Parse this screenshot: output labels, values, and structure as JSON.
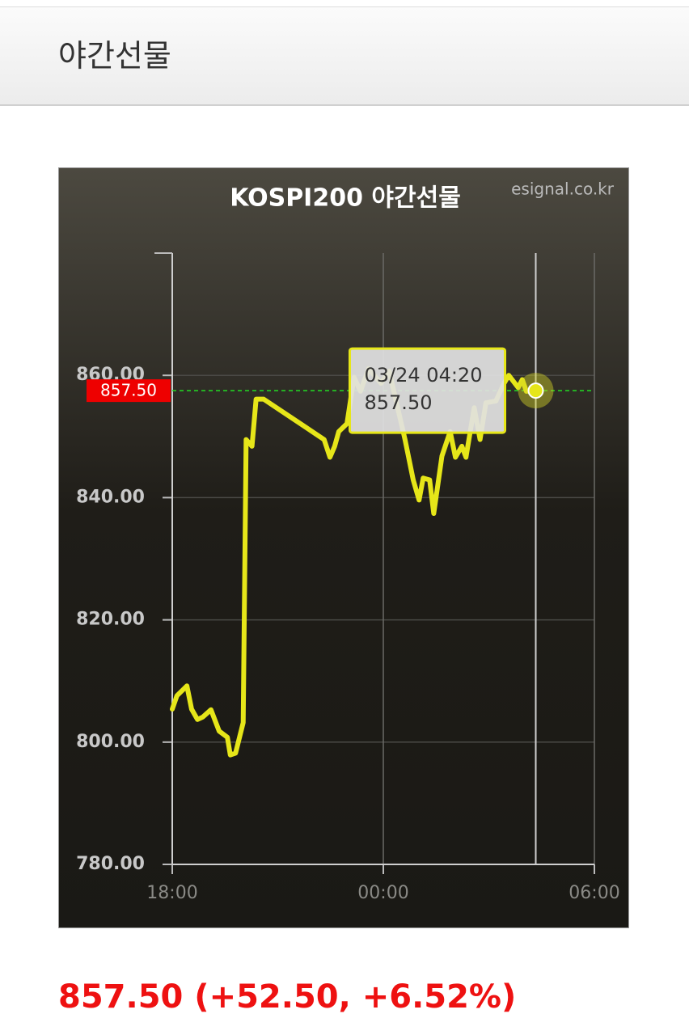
{
  "header": {
    "title": "야간선물"
  },
  "chart_data": {
    "type": "line",
    "title": "KOSPI200 야간선물",
    "watermark": "esignal.co.kr",
    "x": [
      "18:00",
      "18:08",
      "18:25",
      "18:33",
      "18:43",
      "18:52",
      "19:06",
      "19:20",
      "19:34",
      "19:39",
      "19:48",
      "20:01",
      "20:06",
      "20:16",
      "20:23",
      "20:36",
      "22:19",
      "22:29",
      "22:37",
      "22:44",
      "22:58",
      "23:10",
      "23:21",
      "23:35",
      "23:56",
      "00:10",
      "00:37",
      "00:51",
      "01:01",
      "01:08",
      "01:19",
      "01:26",
      "01:40",
      "01:54",
      "02:03",
      "02:14",
      "02:21",
      "02:35",
      "02:45",
      "02:55",
      "03:12",
      "03:26",
      "03:34",
      "03:50",
      "03:57",
      "04:04",
      "04:20"
    ],
    "values": [
      805.4,
      807.6,
      809.2,
      805.4,
      803.7,
      804.1,
      805.3,
      801.8,
      800.8,
      797.9,
      798.2,
      803.2,
      849.5,
      848.4,
      856.1,
      856.1,
      849.5,
      846.6,
      848.4,
      850.8,
      852.1,
      859.7,
      857.4,
      861.1,
      858.7,
      860.7,
      849.5,
      842.9,
      839.6,
      843.2,
      842.9,
      837.4,
      846.8,
      850.8,
      846.6,
      848.4,
      846.6,
      854.7,
      849.5,
      855.5,
      855.8,
      858.7,
      860.0,
      858.0,
      859.3,
      857.4,
      857.5
    ],
    "color": "#e6e619",
    "xlim": [
      "18:00",
      "06:00"
    ],
    "xticks": [
      "18:00",
      "00:00",
      "06:00"
    ],
    "ylim": [
      780,
      880
    ],
    "yticks": [
      {
        "value": 780,
        "label": "780.00"
      },
      {
        "value": 800,
        "label": "800.00"
      },
      {
        "value": 820,
        "label": "820.00"
      },
      {
        "value": 840,
        "label": "840.00"
      },
      {
        "value": 860,
        "label": "860.00"
      }
    ],
    "grid": true,
    "last_value": {
      "value": 857.5,
      "label": "857.50"
    },
    "last_color": "#ee0000",
    "tooltip": {
      "time": "03/24 04:20",
      "value": {
        "value": 857.5,
        "label": "857.50"
      }
    }
  },
  "footer": {
    "summary": "857.50 (+52.50, +6.52%)"
  }
}
